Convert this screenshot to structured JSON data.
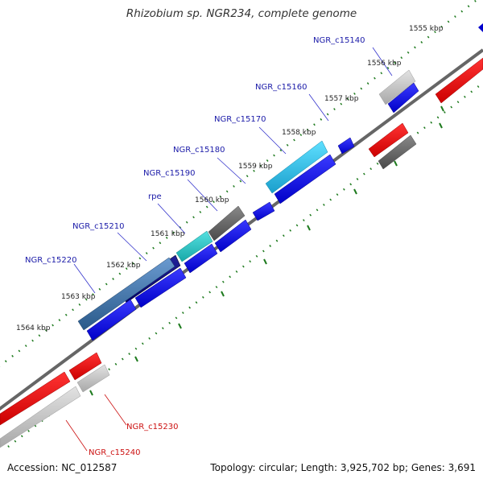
{
  "title": "Rhizobium sp. NGR234, complete genome",
  "accession_text": "Accession: NC_012587",
  "summary_text": "Topology: circular; Length: 3,925,702 bp; Genes: 3,691",
  "colors": {
    "forward_gene_labels": "#1a1aa8",
    "reverse_gene_labels": "#cc1111",
    "tick_marks": "#1e7a1e",
    "backbone": "#666666"
  },
  "kbp_ticks": [
    "1555 kbp",
    "1556 kbp",
    "1557 kbp",
    "1558 kbp",
    "1559 kbp",
    "1560 kbp",
    "1561 kbp",
    "1562 kbp",
    "1563 kbp",
    "1564 kbp"
  ],
  "forward_gene_labels": [
    "NGR_c15140",
    "NGR_c15160",
    "NGR_c15170",
    "NGR_c15180",
    "NGR_c15190",
    "rpe",
    "NGR_c15210",
    "NGR_c15220"
  ],
  "reverse_gene_labels": [
    "NGR_c15230",
    "NGR_c15240"
  ]
}
